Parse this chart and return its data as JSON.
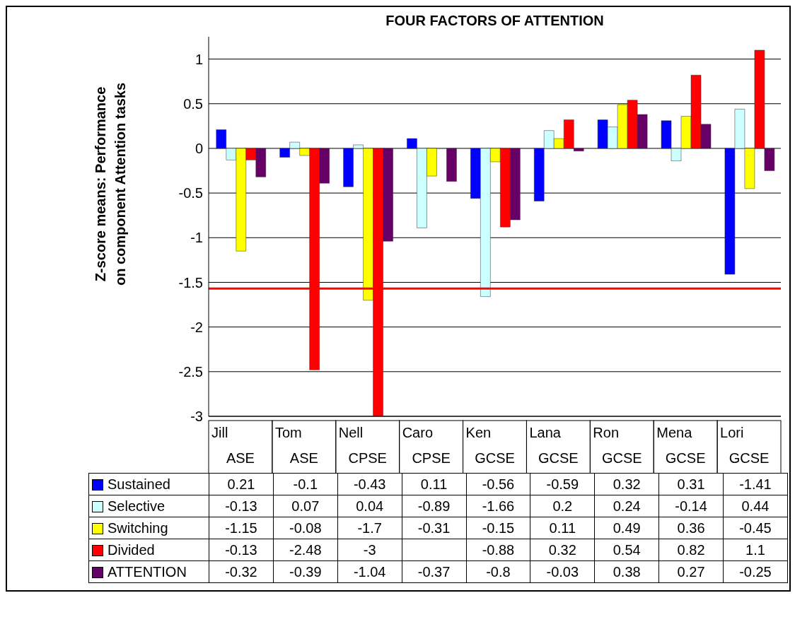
{
  "chart_data": {
    "type": "bar",
    "title": "FOUR FACTORS OF ATTENTION",
    "ylabel": "Z-score means: Performance\non component Attention tasks",
    "categories": [
      "Jill\nASE",
      "Tom\nASE",
      "Nell\nCPSE",
      "Caro\nCPSE",
      "Ken\nGCSE",
      "Lana\nGCSE",
      "Ron\nGCSE",
      "Mena\nGCSE",
      "Lori\nGCSE"
    ],
    "series": [
      {
        "name": "Sustained",
        "color": "#0000ff",
        "values": [
          0.21,
          -0.1,
          -0.43,
          0.11,
          -0.56,
          -0.59,
          0.32,
          0.31,
          -1.41
        ]
      },
      {
        "name": "Selective",
        "color": "#ccffff",
        "values": [
          -0.13,
          0.07,
          0.04,
          -0.89,
          -1.66,
          0.2,
          0.24,
          -0.14,
          0.44
        ]
      },
      {
        "name": "Switching",
        "color": "#ffff00",
        "values": [
          -1.15,
          -0.08,
          -1.7,
          -0.31,
          -0.15,
          0.11,
          0.49,
          0.36,
          -0.45
        ]
      },
      {
        "name": "Divided",
        "color": "#ff0000",
        "values": [
          -0.13,
          -2.48,
          -3,
          null,
          -0.88,
          0.32,
          0.54,
          0.82,
          1.1
        ]
      },
      {
        "name": "ATTENTION",
        "color": "#660066",
        "values": [
          -0.32,
          -0.39,
          -1.04,
          -0.37,
          -0.8,
          -0.03,
          0.38,
          0.27,
          -0.25
        ]
      }
    ],
    "ylim": [
      -3,
      1.25
    ],
    "yticks": [
      -3,
      -2.5,
      -2,
      -1.5,
      -1,
      -0.5,
      0,
      0.5,
      1
    ],
    "ref_lines": [
      {
        "axis": "y",
        "value": -1.57,
        "color": "#ff0000"
      }
    ],
    "grid": "y",
    "legend": "bottom",
    "data_labels": true
  }
}
